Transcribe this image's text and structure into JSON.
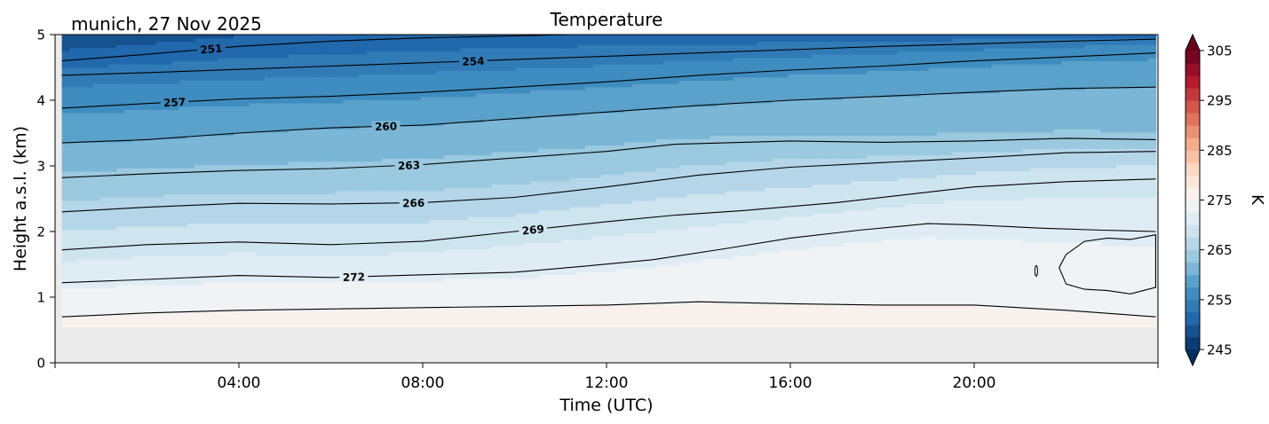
{
  "chart_data": {
    "type": "heatmap",
    "title": "Temperature",
    "subtitle": "munich, 27 Nov 2025",
    "xlabel": "Time (UTC)",
    "ylabel": "Height a.s.l. (km)",
    "x_unit": "hours UTC",
    "xlim": [
      0,
      24
    ],
    "ylim": [
      0,
      5
    ],
    "x_ticks": [
      {
        "value": 4,
        "label": "04:00"
      },
      {
        "value": 8,
        "label": "08:00"
      },
      {
        "value": 12,
        "label": "12:00"
      },
      {
        "value": 16,
        "label": "16:00"
      },
      {
        "value": 20,
        "label": "20:00"
      }
    ],
    "y_ticks": [
      {
        "value": 0,
        "label": "0"
      },
      {
        "value": 1,
        "label": "1"
      },
      {
        "value": 2,
        "label": "2"
      },
      {
        "value": 3,
        "label": "3"
      },
      {
        "value": 4,
        "label": "4"
      },
      {
        "value": 5,
        "label": "5"
      }
    ],
    "data_extent": {
      "x": [
        0.15,
        23.95
      ],
      "y": [
        0.55,
        5.0
      ]
    },
    "background_color": "#ebebeb",
    "colorbar": {
      "label": "K",
      "colormap": "RdBu_r",
      "range": [
        245,
        305
      ],
      "step": 2.5,
      "extend": "both",
      "ticks": [
        {
          "value": 245,
          "label": "245"
        },
        {
          "value": 255,
          "label": "255"
        },
        {
          "value": 265,
          "label": "265"
        },
        {
          "value": 275,
          "label": "275"
        },
        {
          "value": 285,
          "label": "285"
        },
        {
          "value": 295,
          "label": "295"
        },
        {
          "value": 305,
          "label": "305"
        }
      ]
    },
    "contour_interval": 3,
    "contours": [
      {
        "level": 251,
        "label": "251",
        "label_x": 3.4,
        "x": [
          0.15,
          2,
          4,
          6,
          8,
          10,
          11.2
        ],
        "y": [
          4.6,
          4.7,
          4.82,
          4.9,
          4.95,
          4.98,
          5.0
        ]
      },
      {
        "level": 254,
        "label": "254",
        "label_x": 9.1,
        "x": [
          0.15,
          2,
          4,
          6,
          8,
          10,
          12,
          14,
          16,
          18,
          20,
          22,
          23.95
        ],
        "y": [
          4.38,
          4.42,
          4.47,
          4.52,
          4.57,
          4.62,
          4.67,
          4.72,
          4.77,
          4.82,
          4.86,
          4.9,
          4.93
        ]
      },
      {
        "level": 257,
        "label": "257",
        "label_x": 2.6,
        "x": [
          0.15,
          2,
          4,
          6,
          8,
          10,
          12,
          14,
          16,
          18,
          20,
          22,
          23.95
        ],
        "y": [
          3.88,
          3.95,
          4.02,
          4.06,
          4.12,
          4.2,
          4.28,
          4.38,
          4.46,
          4.52,
          4.6,
          4.66,
          4.72
        ]
      },
      {
        "level": 260,
        "label": "260",
        "label_x": 7.2,
        "x": [
          0.15,
          2,
          4,
          6,
          8,
          10,
          12,
          14,
          16,
          18,
          20,
          22,
          23.95
        ],
        "y": [
          3.35,
          3.4,
          3.5,
          3.58,
          3.62,
          3.72,
          3.82,
          3.92,
          4.0,
          4.06,
          4.12,
          4.18,
          4.2
        ]
      },
      {
        "level": 263,
        "label": "263",
        "label_x": 7.7,
        "x": [
          0.15,
          2,
          4,
          6,
          8,
          10,
          12,
          13.5,
          16,
          18,
          20,
          22,
          23.95
        ],
        "y": [
          2.82,
          2.88,
          2.93,
          2.96,
          3.02,
          3.12,
          3.22,
          3.33,
          3.38,
          3.36,
          3.38,
          3.42,
          3.4
        ]
      },
      {
        "level": 266,
        "label": "266",
        "label_x": 7.8,
        "x": [
          0.15,
          2,
          4,
          6,
          8,
          10,
          12,
          14,
          16,
          18,
          20,
          22,
          23.95
        ],
        "y": [
          2.3,
          2.37,
          2.43,
          2.42,
          2.44,
          2.52,
          2.68,
          2.86,
          2.98,
          3.05,
          3.12,
          3.2,
          3.22
        ]
      },
      {
        "level": 269,
        "label": "269",
        "label_x": 10.4,
        "x": [
          0.15,
          2,
          4,
          6,
          8,
          10,
          12,
          13.5,
          15,
          17,
          19,
          20,
          22,
          23.95
        ],
        "y": [
          1.72,
          1.8,
          1.84,
          1.8,
          1.85,
          2.0,
          2.15,
          2.25,
          2.32,
          2.44,
          2.6,
          2.68,
          2.76,
          2.8
        ]
      },
      {
        "level": 272,
        "label": "272",
        "label_x": 6.5,
        "x": [
          0.15,
          2,
          4,
          6,
          8,
          10,
          11.5,
          13,
          14.5,
          16,
          17.5,
          19,
          20,
          21.5,
          22.8,
          23.95
        ],
        "y": [
          1.22,
          1.27,
          1.33,
          1.3,
          1.34,
          1.38,
          1.47,
          1.57,
          1.73,
          1.9,
          2.02,
          2.12,
          2.1,
          2.05,
          2.02,
          2.0
        ]
      },
      {
        "level": 275,
        "label": "",
        "label_x": null,
        "x": [
          0.15,
          2,
          4,
          6,
          8,
          10,
          12,
          14,
          16,
          18,
          20,
          22,
          23.95
        ],
        "y": [
          0.7,
          0.76,
          0.8,
          0.82,
          0.84,
          0.86,
          0.88,
          0.93,
          0.9,
          0.88,
          0.88,
          0.8,
          0.7
        ]
      }
    ],
    "closed_contour": {
      "level": 275,
      "x": [
        22.0,
        22.4,
        22.9,
        23.4,
        23.95,
        23.95,
        23.4,
        22.9,
        22.4,
        22.0,
        21.85,
        22.0
      ],
      "y": [
        1.65,
        1.85,
        1.9,
        1.88,
        1.95,
        1.15,
        1.05,
        1.1,
        1.12,
        1.2,
        1.45,
        1.65
      ]
    },
    "small_contour": {
      "level": 275,
      "x": 21.35,
      "y": 1.4
    }
  }
}
